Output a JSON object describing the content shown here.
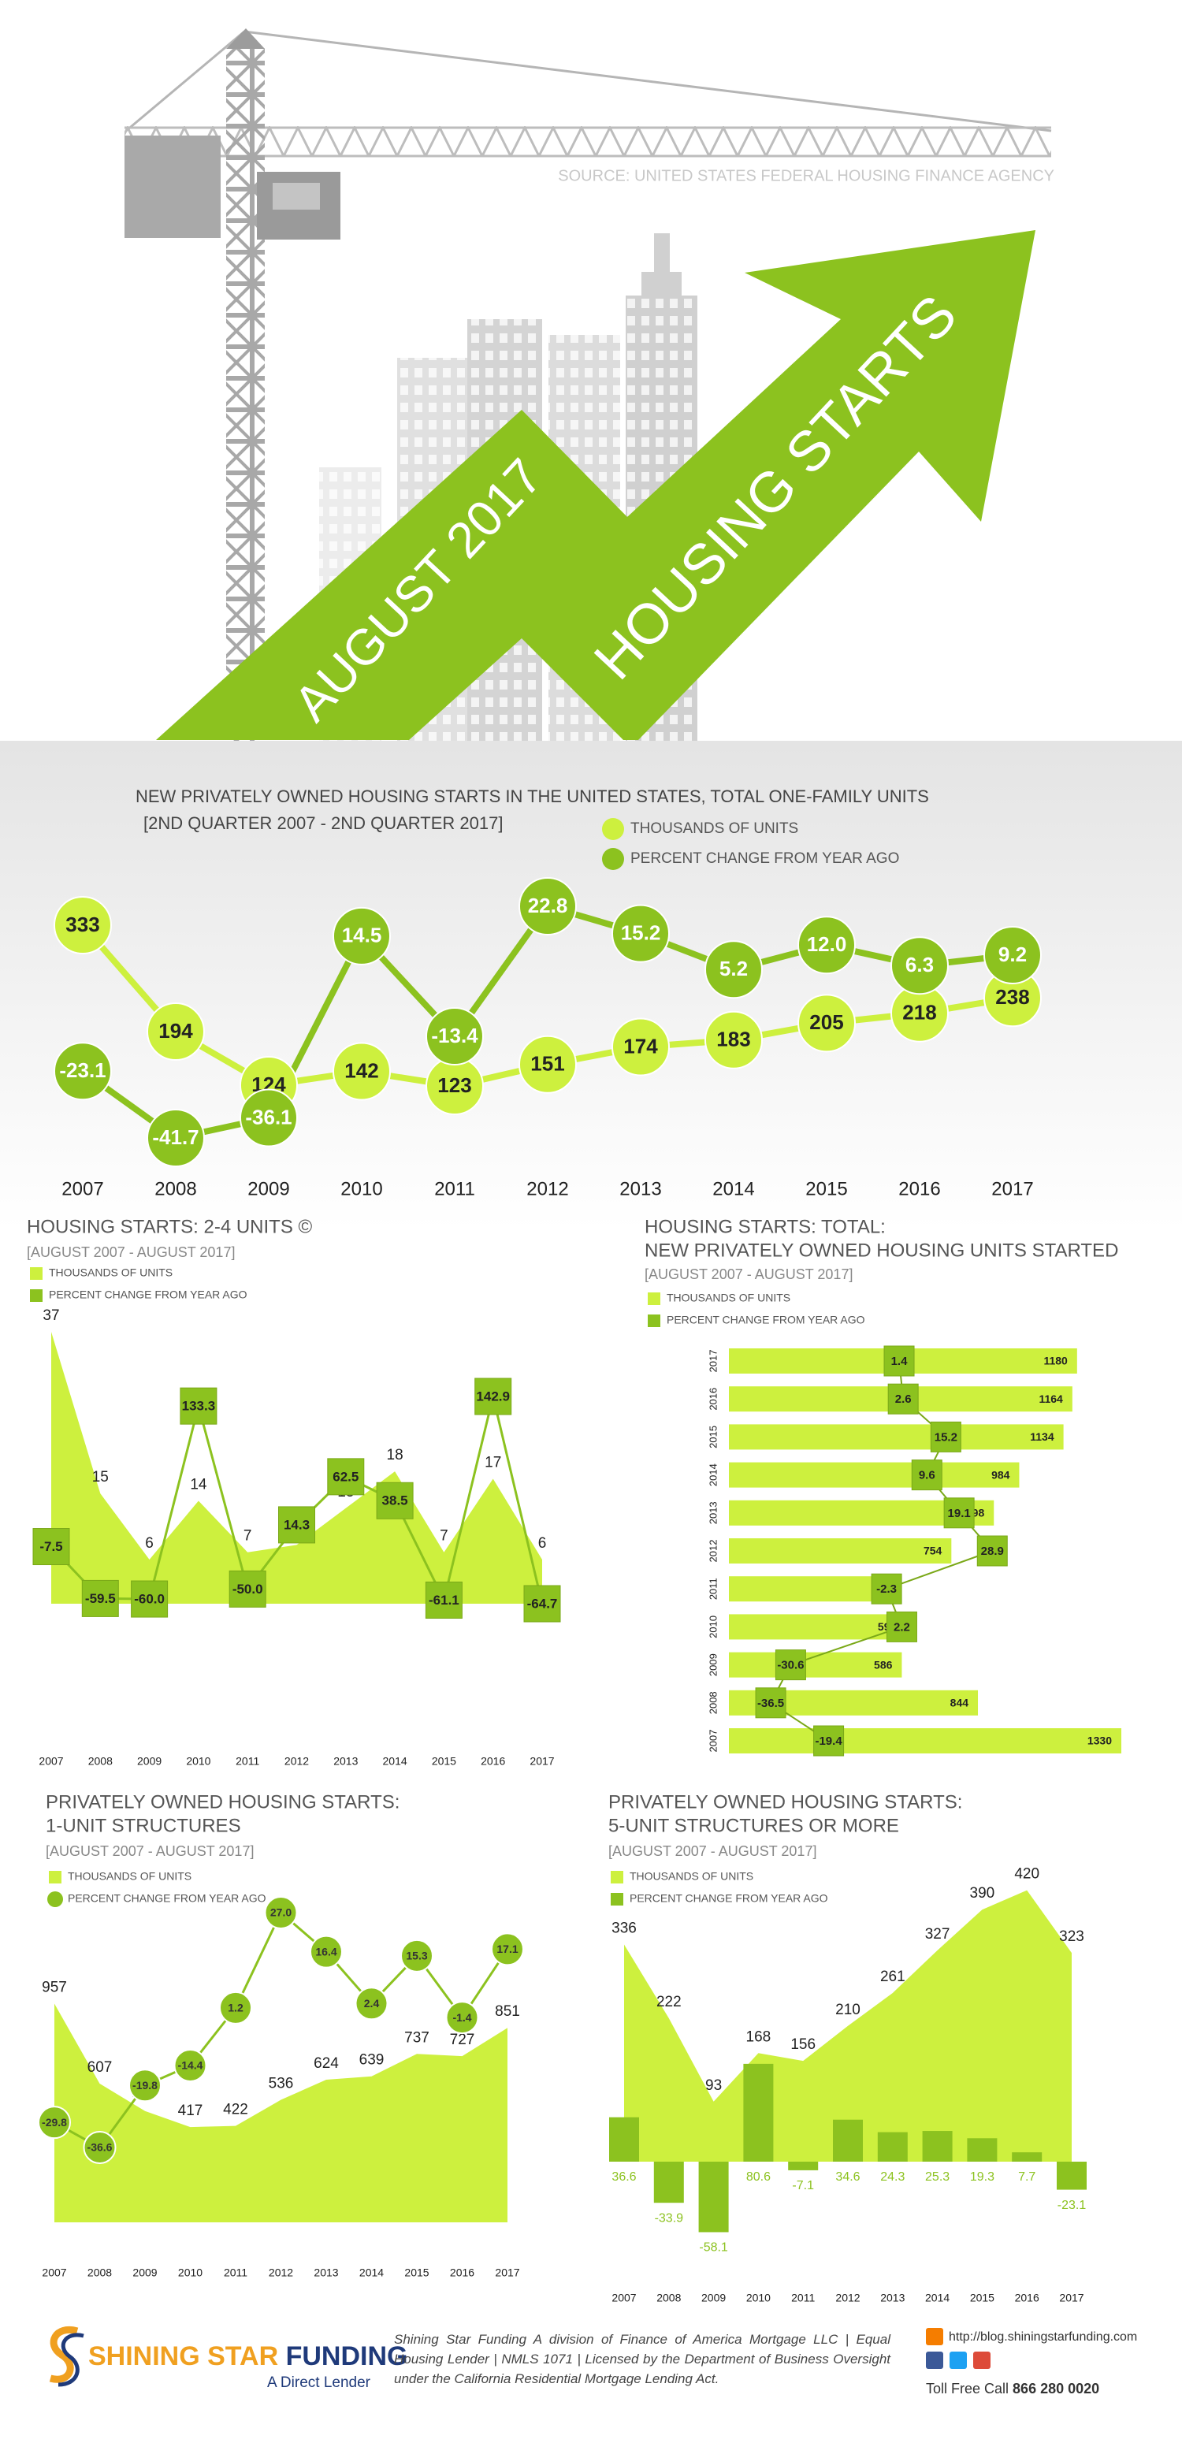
{
  "header": {
    "source": "SOURCE: UNITED STATES FEDERAL HOUSING FINANCE AGENCY",
    "title_lines": [
      "AUGUST 2017",
      "HOUSING STARTS"
    ]
  },
  "chart_data": [
    {
      "type": "line",
      "title": "NEW PRIVATELY OWNED HOUSING STARTS IN THE UNITED STATES, TOTAL ONE-FAMILY UNITS",
      "subtitle": "[2ND QUARTER 2007 - 2ND QUARTER 2017]",
      "categories": [
        "2007",
        "2008",
        "2009",
        "2010",
        "2011",
        "2012",
        "2013",
        "2014",
        "2015",
        "2016",
        "2017"
      ],
      "series": [
        {
          "name": "THOUSANDS OF UNITS",
          "color": "#cdf03e",
          "kind": "line",
          "marker": "circle",
          "values": [
            333,
            194,
            124,
            142,
            123,
            151,
            174,
            183,
            205,
            218,
            238
          ]
        },
        {
          "name": "PERCENT CHANGE FROM YEAR AGO",
          "color": "#8cc21f",
          "kind": "line",
          "marker": "circle",
          "values": [
            -23.1,
            -41.7,
            -36.1,
            14.5,
            -13.4,
            22.8,
            15.2,
            5.2,
            12.0,
            6.3,
            9.2
          ],
          "value_labels": [
            "-23.1",
            "-41.7",
            "-36.1",
            "14.5",
            "-13.4",
            "22.8",
            "15.2",
            "5.2",
            "12.0",
            "6.3",
            "9.2"
          ]
        }
      ]
    },
    {
      "type": "area",
      "title": "HOUSING STARTS: 2-4 UNITS ©",
      "subtitle": "[AUGUST 2007 - AUGUST 2017]",
      "categories": [
        "2007",
        "2008",
        "2009",
        "2010",
        "2011",
        "2012",
        "2013",
        "2014",
        "2015",
        "2016",
        "2017"
      ],
      "series": [
        {
          "name": "THOUSANDS OF UNITS",
          "color": "#cdf03e",
          "kind": "area",
          "marker": "square",
          "values": [
            37,
            15,
            6,
            14,
            7,
            8,
            13,
            18,
            7,
            17,
            6
          ]
        },
        {
          "name": "PERCENT CHANGE FROM YEAR AGO",
          "color": "#8cc21f",
          "kind": "line",
          "marker": "square",
          "values": [
            -7.5,
            -59.5,
            -60.0,
            133.3,
            -50.0,
            14.3,
            62.5,
            38.5,
            -61.1,
            142.9,
            -64.7
          ],
          "value_labels": [
            "-7.5",
            "-59.5",
            "-60.0",
            "133.3",
            "-50.0",
            "14.3",
            "62.5",
            "38.5",
            "-61.1",
            "142.9",
            "-64.7"
          ]
        }
      ]
    },
    {
      "type": "bar",
      "horizontal": true,
      "title": [
        "HOUSING STARTS: TOTAL:",
        "NEW PRIVATELY OWNED HOUSING UNITS STARTED"
      ],
      "subtitle": "[AUGUST 2007 - AUGUST 2017]",
      "categories": [
        "2017",
        "2016",
        "2015",
        "2014",
        "2013",
        "2012",
        "2011",
        "2010",
        "2009",
        "2008",
        "2007"
      ],
      "series": [
        {
          "name": "THOUSANDS OF UNITS",
          "color": "#cdf03e",
          "kind": "bar",
          "marker": "square",
          "values": [
            1180,
            1164,
            1134,
            984,
            898,
            754,
            585,
            599,
            586,
            844,
            1330
          ]
        },
        {
          "name": "PERCENT CHANGE FROM YEAR AGO",
          "color": "#8cc21f",
          "kind": "line",
          "marker": "square",
          "values": [
            1.4,
            2.6,
            15.2,
            9.6,
            19.1,
            28.9,
            -2.3,
            2.2,
            -30.6,
            -36.5,
            -19.4
          ]
        }
      ]
    },
    {
      "type": "area",
      "title": [
        "PRIVATELY OWNED HOUSING STARTS:",
        "1-UNIT STRUCTURES"
      ],
      "subtitle": "[AUGUST 2007 - AUGUST 2017]",
      "categories": [
        "2007",
        "2008",
        "2009",
        "2010",
        "2011",
        "2012",
        "2013",
        "2014",
        "2015",
        "2016",
        "2017"
      ],
      "series": [
        {
          "name": "THOUSANDS OF UNITS",
          "color": "#cdf03e",
          "kind": "area",
          "marker": "square",
          "values": [
            957,
            607,
            487,
            417,
            422,
            536,
            624,
            639,
            737,
            727,
            851
          ]
        },
        {
          "name": "PERCENT CHANGE FROM YEAR AGO",
          "color": "#8cc21f",
          "kind": "line",
          "marker": "circle",
          "values": [
            -29.8,
            -36.6,
            -19.8,
            -14.4,
            1.2,
            27.0,
            16.4,
            2.4,
            15.3,
            -1.4,
            17.1
          ],
          "value_labels": [
            "-29.8",
            "-36.6",
            "-19.8",
            "-14.4",
            "1.2",
            "27.0",
            "16.4",
            "2.4",
            "15.3",
            "-1.4",
            "17.1"
          ]
        }
      ]
    },
    {
      "type": "area",
      "title": [
        "PRIVATELY OWNED HOUSING STARTS:",
        "5-UNIT STRUCTURES OR MORE"
      ],
      "subtitle": "[AUGUST 2007 - AUGUST 2017]",
      "categories": [
        "2007",
        "2008",
        "2009",
        "2010",
        "2011",
        "2012",
        "2013",
        "2014",
        "2015",
        "2016",
        "2017"
      ],
      "series": [
        {
          "name": "THOUSANDS OF UNITS",
          "color": "#cdf03e",
          "kind": "area",
          "marker": "square",
          "values": [
            336,
            222,
            93,
            168,
            156,
            210,
            261,
            327,
            390,
            420,
            323
          ]
        },
        {
          "name": "PERCENT CHANGE FROM YEAR AGO",
          "color": "#8cc21f",
          "kind": "bar",
          "marker": "square",
          "values": [
            36.6,
            -33.9,
            -58.1,
            80.6,
            -7.1,
            34.6,
            24.3,
            25.3,
            19.3,
            7.7,
            -23.1
          ]
        }
      ]
    }
  ],
  "footer": {
    "brand": [
      "SHINING STAR",
      "FUNDING"
    ],
    "tagline": "A Direct Lender",
    "disclaimer": "Shining Star Funding A division of Finance of America Mortgage LLC | Equal Housing Lender | NMLS 1071 | Licensed by the Department of Business Oversight under the California Residential Mortgage Lending Act.",
    "blog": "http://blog.shiningstarfunding.com",
    "phone_label": "Toll Free Call",
    "phone": "866 280 0020"
  }
}
